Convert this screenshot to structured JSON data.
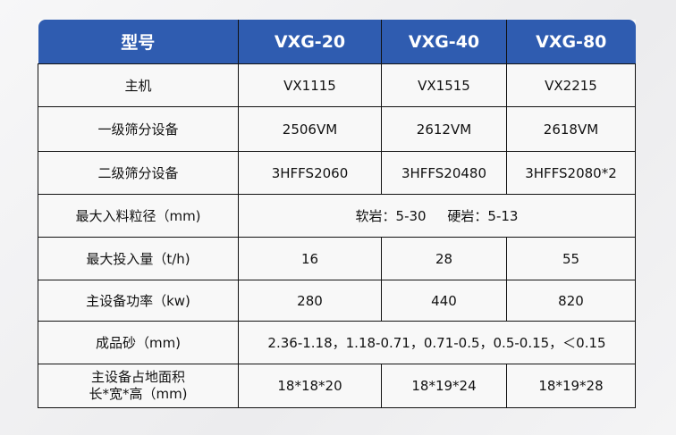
{
  "header": [
    "型号",
    "VXG-20",
    "VXG-40",
    "VXG-80"
  ],
  "rows": [
    {
      "label": "主机",
      "values": [
        "VX1115",
        "VX1515",
        "VX2215"
      ]
    },
    {
      "label": "一级筛分设备",
      "values": [
        "2506VM",
        "2612VM",
        "2618VM"
      ]
    },
    {
      "label": "二级筛分设备",
      "values": [
        "3HFFS2060",
        "3HFFS20480",
        "3HFFS2080*2"
      ]
    },
    {
      "label": "最大入料粒径（mm)",
      "merged": "软岩：5-30     硬岩：5-13"
    },
    {
      "label": "最大投入量（t/h)",
      "values": [
        "16",
        "28",
        "55"
      ]
    },
    {
      "label": "主设备功率（kw)",
      "values": [
        "280",
        "440",
        "820"
      ]
    },
    {
      "label": "成品砂（mm)",
      "merged": "2.36-1.18，1.18-0.71，0.71-0.5，0.5-0.15，＜0.15"
    },
    {
      "label_line1": "主设备占地面积",
      "label_line2": "长*宽*高（mm)",
      "values": [
        "18*18*20",
        "18*19*24",
        "18*19*28"
      ]
    }
  ]
}
